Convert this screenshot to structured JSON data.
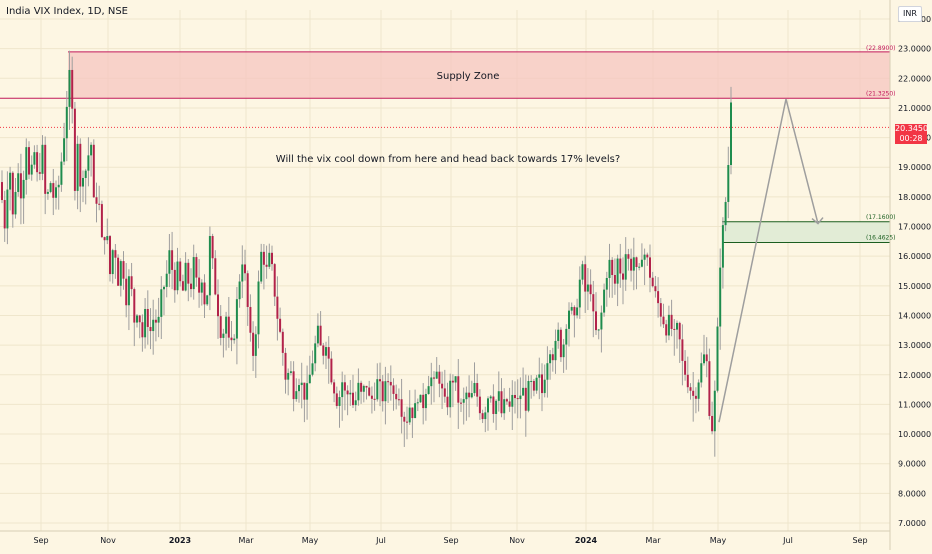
{
  "header": {
    "title": "India VIX Index, 1D, NSE",
    "currency": "INR"
  },
  "last_price": {
    "value": "20.3450",
    "countdown": "00:28"
  },
  "chart_data": {
    "type": "candlestick",
    "title": "India VIX Index, 1D, NSE",
    "y_range": [
      7.0,
      24.0
    ],
    "y_ticks": [
      "7.0000",
      "8.0000",
      "9.0000",
      "10.0000",
      "11.0000",
      "12.0000",
      "13.0000",
      "14.0000",
      "15.0000",
      "16.0000",
      "17.0000",
      "18.0000",
      "19.0000",
      "20.0000",
      "21.0000",
      "22.0000",
      "23.0000",
      "24.0000"
    ],
    "x_ticks": [
      "Sep",
      "Nov",
      "2023",
      "Mar",
      "May",
      "Jul",
      "Sep",
      "Nov",
      "2024",
      "Mar",
      "May",
      "Jul",
      "Sep"
    ],
    "bold_x_ticks": [
      "2023",
      "2024"
    ],
    "price_path": [
      [
        0,
        18.5
      ],
      [
        5,
        17.0
      ],
      [
        9,
        19.5
      ],
      [
        13,
        17.2
      ],
      [
        17,
        19.0
      ],
      [
        22,
        18.0
      ],
      [
        26,
        20.0
      ],
      [
        30,
        18.2
      ],
      [
        34,
        19.6
      ],
      [
        38,
        18.4
      ],
      [
        42,
        19.8
      ],
      [
        46,
        17.6
      ],
      [
        50,
        18.6
      ],
      [
        54,
        17.9
      ],
      [
        58,
        18.2
      ],
      [
        62,
        19.4
      ],
      [
        66,
        20.8
      ],
      [
        69,
        22.2
      ],
      [
        72,
        21.0
      ],
      [
        75,
        18.4
      ],
      [
        78,
        20.2
      ],
      [
        81,
        17.6
      ],
      [
        84,
        19.6
      ],
      [
        87,
        18.4
      ],
      [
        90,
        20.6
      ],
      [
        94,
        17.6
      ],
      [
        98,
        18.2
      ],
      [
        102,
        16.4
      ],
      [
        106,
        17.0
      ],
      [
        110,
        15.4
      ],
      [
        114,
        16.6
      ],
      [
        118,
        15.2
      ],
      [
        122,
        16.0
      ],
      [
        126,
        14.6
      ],
      [
        130,
        15.4
      ],
      [
        134,
        13.8
      ],
      [
        138,
        14.4
      ],
      [
        142,
        13.2
      ],
      [
        146,
        14.2
      ],
      [
        150,
        13.4
      ],
      [
        154,
        14.0
      ],
      [
        158,
        13.6
      ],
      [
        162,
        14.8
      ],
      [
        166,
        15.2
      ],
      [
        170,
        16.2
      ],
      [
        174,
        15.0
      ],
      [
        178,
        15.6
      ],
      [
        182,
        14.6
      ],
      [
        186,
        15.6
      ],
      [
        190,
        14.8
      ],
      [
        194,
        15.8
      ],
      [
        198,
        14.6
      ],
      [
        202,
        15.4
      ],
      [
        206,
        14.0
      ],
      [
        210,
        16.6
      ],
      [
        214,
        15.2
      ],
      [
        218,
        14.2
      ],
      [
        222,
        13.2
      ],
      [
        226,
        14.0
      ],
      [
        230,
        12.6
      ],
      [
        234,
        13.4
      ],
      [
        238,
        14.8
      ],
      [
        242,
        16.0
      ],
      [
        246,
        15.0
      ],
      [
        250,
        13.2
      ],
      [
        254,
        12.6
      ],
      [
        258,
        14.8
      ],
      [
        262,
        16.4
      ],
      [
        266,
        15.4
      ],
      [
        270,
        16.0
      ],
      [
        274,
        15.0
      ],
      [
        278,
        13.8
      ],
      [
        282,
        13.0
      ],
      [
        286,
        11.8
      ],
      [
        290,
        12.2
      ],
      [
        294,
        11.4
      ],
      [
        298,
        12.0
      ],
      [
        302,
        11.6
      ],
      [
        306,
        11.2
      ],
      [
        310,
        12.0
      ],
      [
        314,
        12.8
      ],
      [
        318,
        13.4
      ],
      [
        322,
        12.6
      ],
      [
        326,
        13.2
      ],
      [
        330,
        12.2
      ],
      [
        334,
        11.6
      ],
      [
        338,
        11.0
      ],
      [
        342,
        11.8
      ],
      [
        346,
        11.2
      ],
      [
        350,
        11.6
      ],
      [
        354,
        10.8
      ],
      [
        358,
        11.6
      ],
      [
        362,
        11.2
      ],
      [
        366,
        11.8
      ],
      [
        370,
        11.0
      ],
      [
        374,
        11.4
      ],
      [
        378,
        11.8
      ],
      [
        382,
        11.2
      ],
      [
        386,
        11.6
      ],
      [
        390,
        12.0
      ],
      [
        394,
        11.2
      ],
      [
        398,
        11.6
      ],
      [
        402,
        10.8
      ],
      [
        406,
        10.4
      ],
      [
        410,
        11.0
      ],
      [
        414,
        10.6
      ],
      [
        418,
        11.4
      ],
      [
        422,
        10.8
      ],
      [
        426,
        11.6
      ],
      [
        430,
        12.0
      ],
      [
        434,
        11.6
      ],
      [
        438,
        12.2
      ],
      [
        442,
        11.4
      ],
      [
        446,
        10.8
      ],
      [
        450,
        11.6
      ],
      [
        454,
        12.0
      ],
      [
        458,
        11.2
      ],
      [
        462,
        10.8
      ],
      [
        466,
        11.4
      ],
      [
        470,
        11.0
      ],
      [
        474,
        11.6
      ],
      [
        478,
        11.2
      ],
      [
        482,
        10.6
      ],
      [
        486,
        11.0
      ],
      [
        490,
        11.6
      ],
      [
        494,
        10.8
      ],
      [
        498,
        11.4
      ],
      [
        502,
        10.6
      ],
      [
        506,
        11.2
      ],
      [
        510,
        10.8
      ],
      [
        514,
        11.4
      ],
      [
        518,
        11.0
      ],
      [
        522,
        11.6
      ],
      [
        526,
        11.0
      ],
      [
        530,
        11.8
      ],
      [
        534,
        11.2
      ],
      [
        538,
        12.0
      ],
      [
        542,
        11.4
      ],
      [
        546,
        12.4
      ],
      [
        550,
        13.0
      ],
      [
        554,
        12.6
      ],
      [
        558,
        13.4
      ],
      [
        562,
        12.6
      ],
      [
        566,
        13.8
      ],
      [
        570,
        14.4
      ],
      [
        574,
        13.6
      ],
      [
        578,
        14.8
      ],
      [
        582,
        15.6
      ],
      [
        586,
        14.6
      ],
      [
        590,
        15.2
      ],
      [
        594,
        13.6
      ],
      [
        598,
        13.2
      ],
      [
        602,
        14.2
      ],
      [
        606,
        15.4
      ],
      [
        610,
        15.8
      ],
      [
        614,
        14.8
      ],
      [
        618,
        16.0
      ],
      [
        622,
        15.2
      ],
      [
        626,
        16.2
      ],
      [
        630,
        15.6
      ],
      [
        634,
        16.0
      ],
      [
        638,
        15.0
      ],
      [
        642,
        16.2
      ],
      [
        646,
        16.0
      ],
      [
        650,
        15.4
      ],
      [
        654,
        14.8
      ],
      [
        658,
        14.4
      ],
      [
        662,
        14.0
      ],
      [
        666,
        13.6
      ],
      [
        670,
        13.8
      ],
      [
        674,
        13.2
      ],
      [
        678,
        13.6
      ],
      [
        682,
        12.4
      ],
      [
        686,
        12.0
      ],
      [
        690,
        11.6
      ],
      [
        694,
        11.2
      ],
      [
        698,
        11.8
      ],
      [
        702,
        12.4
      ],
      [
        706,
        12.8
      ],
      [
        709,
        11.0
      ],
      [
        712,
        10.2
      ],
      [
        715,
        11.4
      ],
      [
        718,
        13.8
      ],
      [
        721,
        16.6
      ],
      [
        724,
        17.0
      ],
      [
        727,
        18.6
      ],
      [
        729,
        19.4
      ],
      [
        731,
        21.4
      ],
      [
        733,
        20.3
      ]
    ],
    "supply_zone": {
      "label": "Supply Zone",
      "top": 22.89,
      "bottom": 21.325,
      "top_label": "(22.8900)",
      "bottom_label": "(21.3250)",
      "color": "#f5c6c0",
      "line_color": "#c2185b"
    },
    "demand_zone": {
      "top": 17.16,
      "bottom": 16.4625,
      "top_label": "(17.1600)",
      "bottom_label": "(16.4625)",
      "color": "#e2ecd6",
      "line_color": "#1b5e20"
    },
    "current_price_line": 20.345,
    "annotation": "Will the vix cool down from here and head back towards 17% levels?",
    "projection_path": [
      [
        10.4
      ],
      [
        21.3
      ],
      [
        17.1
      ]
    ],
    "colors": {
      "up": "#1e8c4e",
      "down": "#b2224a",
      "wick": "#9e9e9e",
      "grid": "#efe6cc",
      "projection": "#9e9e9e",
      "price_badge": "#f23645"
    }
  }
}
